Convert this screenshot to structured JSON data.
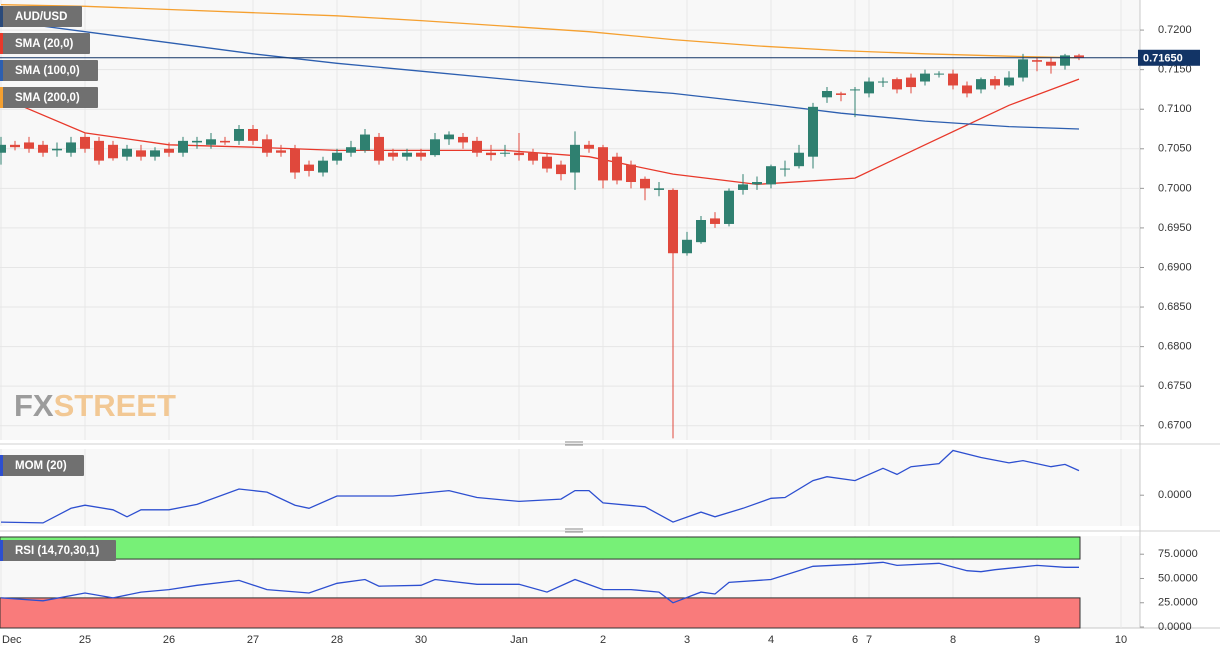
{
  "chart_data": [
    {
      "type": "candlestick",
      "name": "AUD/USD",
      "categories": [
        "Dec",
        null,
        null,
        null,
        null,
        null,
        "25",
        null,
        null,
        null,
        null,
        null,
        "26",
        null,
        null,
        null,
        null,
        null,
        "27",
        null,
        null,
        null,
        null,
        null,
        "28",
        null,
        null,
        null,
        null,
        null,
        "30",
        null,
        null,
        null,
        null,
        null,
        null,
        "Jan",
        null,
        null,
        null,
        null,
        null,
        "2",
        null,
        null,
        null,
        null,
        null,
        "3",
        null,
        null,
        null,
        null,
        null,
        "4",
        null,
        null,
        null,
        null,
        null,
        "6",
        "7",
        null,
        null,
        null,
        null,
        null,
        "8",
        null,
        null,
        null,
        null,
        null,
        "9",
        null,
        null,
        null,
        null,
        null,
        "10"
      ],
      "open": [
        0.7045,
        0.7055,
        0.7058,
        0.7055,
        0.7048,
        0.7045,
        0.7065,
        0.706,
        0.7055,
        0.704,
        0.7048,
        0.704,
        0.705,
        0.7045,
        0.7058,
        0.7055,
        0.706,
        0.706,
        0.7075,
        0.7062,
        0.7048,
        0.705,
        0.703,
        0.702,
        0.7035,
        0.7045,
        0.7048,
        0.7065,
        0.7045,
        0.704,
        0.7045,
        0.7042,
        0.7062,
        0.7065,
        0.706,
        0.7045,
        0.7045,
        0.7045,
        0.7045,
        0.704,
        0.703,
        0.702,
        0.7055,
        0.7052,
        0.704,
        0.703,
        0.7012,
        0.6998,
        0.6998,
        0.6918,
        0.6932,
        0.6962,
        0.6955,
        0.6998,
        0.7005,
        0.7005,
        0.7025,
        0.7028,
        0.704,
        0.7115,
        0.712,
        0.7125,
        0.712,
        0.7135,
        0.7138,
        0.714,
        0.7135,
        0.7145,
        0.7145,
        0.713,
        0.7125,
        0.7138,
        0.713,
        0.714,
        0.7162,
        0.716,
        0.7155,
        0.7168,
        null,
        null,
        null
      ],
      "high": [
        0.7065,
        0.706,
        0.7065,
        0.706,
        0.7058,
        0.7065,
        0.707,
        0.7065,
        0.706,
        0.7055,
        0.7055,
        0.7052,
        0.7058,
        0.7065,
        0.7065,
        0.707,
        0.7065,
        0.708,
        0.708,
        0.7068,
        0.7055,
        0.7055,
        0.7035,
        0.704,
        0.705,
        0.706,
        0.7075,
        0.707,
        0.705,
        0.705,
        0.705,
        0.707,
        0.7072,
        0.707,
        0.7065,
        0.7055,
        0.7055,
        0.707,
        0.705,
        0.7045,
        0.7035,
        0.7072,
        0.706,
        0.7055,
        0.7045,
        0.7035,
        0.7015,
        0.7008,
        0.7,
        0.6945,
        0.6965,
        0.697,
        0.7,
        0.7018,
        0.7015,
        0.703,
        0.7035,
        0.7055,
        0.7108,
        0.7128,
        0.7122,
        0.7128,
        0.714,
        0.714,
        0.714,
        0.7145,
        0.715,
        0.7148,
        0.715,
        0.7135,
        0.714,
        0.7142,
        0.7148,
        0.717,
        0.7165,
        0.7165,
        0.717,
        0.717,
        null,
        null,
        null
      ],
      "low": [
        0.703,
        0.7048,
        0.7045,
        0.704,
        0.704,
        0.704,
        0.7045,
        0.703,
        0.7035,
        0.7035,
        0.7035,
        0.7035,
        0.704,
        0.704,
        0.705,
        0.705,
        0.7055,
        0.7055,
        0.7055,
        0.704,
        0.704,
        0.7012,
        0.7015,
        0.7015,
        0.703,
        0.704,
        0.7045,
        0.703,
        0.7035,
        0.7035,
        0.7035,
        0.704,
        0.7055,
        0.705,
        0.704,
        0.7035,
        0.704,
        0.7035,
        0.703,
        0.702,
        0.701,
        0.6998,
        0.7045,
        0.7,
        0.7005,
        0.7,
        0.6985,
        0.699,
        0.6684,
        0.6915,
        0.693,
        0.695,
        0.6952,
        0.6992,
        0.6998,
        0.7,
        0.7015,
        0.7025,
        0.7025,
        0.7108,
        0.711,
        0.709,
        0.7115,
        0.7128,
        0.712,
        0.712,
        0.713,
        0.714,
        0.7125,
        0.7115,
        0.712,
        0.7125,
        0.7128,
        0.7135,
        0.7148,
        0.7145,
        0.715,
        0.7162,
        null,
        null,
        null
      ],
      "close": [
        0.7055,
        0.7052,
        0.705,
        0.7045,
        0.705,
        0.7058,
        0.705,
        0.7035,
        0.7038,
        0.705,
        0.704,
        0.7048,
        0.7045,
        0.706,
        0.706,
        0.7062,
        0.7058,
        0.7075,
        0.706,
        0.7045,
        0.7045,
        0.702,
        0.7022,
        0.7035,
        0.7045,
        0.7052,
        0.7068,
        0.7035,
        0.704,
        0.7045,
        0.704,
        0.7062,
        0.7068,
        0.7058,
        0.7045,
        0.7042,
        0.7045,
        0.7042,
        0.7035,
        0.7025,
        0.7018,
        0.7055,
        0.705,
        0.701,
        0.701,
        0.7008,
        0.7,
        0.7,
        0.6918,
        0.6935,
        0.696,
        0.6955,
        0.6997,
        0.7005,
        0.7008,
        0.7028,
        0.7025,
        0.7045,
        0.7103,
        0.7123,
        0.7118,
        0.7125,
        0.7135,
        0.7135,
        0.7125,
        0.7128,
        0.7145,
        0.7145,
        0.713,
        0.712,
        0.7138,
        0.713,
        0.714,
        0.7163,
        0.716,
        0.7155,
        0.7168,
        0.7165,
        null,
        null,
        null
      ],
      "up_color": "#2f8070",
      "down_color": "#e0483c",
      "ylim": [
        0.6682,
        0.7238
      ],
      "yticks": [
        {
          "value": 0.67,
          "label": "0.6700"
        },
        {
          "value": 0.675,
          "label": "0.6750"
        },
        {
          "value": 0.68,
          "label": "0.6800"
        },
        {
          "value": 0.685,
          "label": "0.6850"
        },
        {
          "value": 0.69,
          "label": "0.6900"
        },
        {
          "value": 0.695,
          "label": "0.6950"
        },
        {
          "value": 0.7,
          "label": "0.7000"
        },
        {
          "value": 0.705,
          "label": "0.7050"
        },
        {
          "value": 0.71,
          "label": "0.7100"
        },
        {
          "value": 0.715,
          "label": "0.7150"
        },
        {
          "value": 0.72,
          "label": "0.7200"
        }
      ],
      "grid": true,
      "price_line": {
        "value": 0.7165,
        "label": "0.71650",
        "color": "#123466"
      },
      "watermark": [
        "FX",
        "STREET"
      ],
      "series": [
        {
          "name": "SMA (20,0)",
          "color": "#e8382a",
          "x": [
            0,
            6,
            12,
            18,
            24,
            30,
            36,
            42,
            48,
            54,
            61,
            66,
            72,
            77
          ],
          "values": [
            0.7115,
            0.707,
            0.7055,
            0.7052,
            0.7048,
            0.7048,
            0.7048,
            0.704,
            0.7018,
            0.7005,
            0.7013,
            0.7055,
            0.7105,
            0.7138
          ]
        },
        {
          "name": "SMA (100,0)",
          "color": "#2d5fb0",
          "x": [
            0,
            6,
            12,
            18,
            24,
            30,
            36,
            42,
            48,
            54,
            60,
            66,
            72,
            77
          ],
          "values": [
            0.7212,
            0.7198,
            0.7184,
            0.717,
            0.7158,
            0.7148,
            0.7138,
            0.7128,
            0.712,
            0.7108,
            0.7095,
            0.7085,
            0.7078,
            0.7075
          ]
        },
        {
          "name": "SMA (200,0)",
          "color": "#f5a030",
          "x": [
            0,
            6,
            12,
            18,
            24,
            30,
            36,
            42,
            48,
            54,
            60,
            66,
            72,
            77
          ],
          "values": [
            0.7232,
            0.723,
            0.7226,
            0.7222,
            0.7218,
            0.7212,
            0.7205,
            0.7198,
            0.7188,
            0.718,
            0.7174,
            0.717,
            0.7167,
            0.7165
          ]
        }
      ]
    },
    {
      "type": "line",
      "series": [
        {
          "name": "MOM (20)",
          "color": "#2d4fd0",
          "x": [
            0,
            3,
            5,
            6,
            8,
            9,
            10,
            12,
            14,
            17,
            19,
            21,
            22,
            24,
            28,
            32,
            34,
            37,
            40,
            41,
            42,
            43,
            46,
            48,
            50,
            51,
            53,
            55,
            56,
            58,
            59,
            61,
            63,
            64,
            65,
            67,
            68,
            70,
            72,
            73,
            75,
            76,
            77
          ],
          "values": [
            -0.0035,
            -0.0036,
            -0.0017,
            -0.0013,
            -0.0019,
            -0.0028,
            -0.0019,
            -0.0019,
            -0.0012,
            0.0008,
            0.0004,
            -0.0013,
            -0.0017,
            -0.0001,
            -0.0001,
            0.0006,
            -0.0003,
            -0.0008,
            -0.0005,
            0.0006,
            0.0006,
            -0.001,
            -0.0015,
            -0.0035,
            -0.0022,
            -0.0028,
            -0.0017,
            -0.0004,
            -0.0003,
            0.0019,
            0.0024,
            0.0019,
            0.0035,
            0.0027,
            0.0037,
            0.0041,
            0.0058,
            0.0049,
            0.0042,
            0.0045,
            0.0037,
            0.004,
            0.0032
          ]
        }
      ],
      "ylim": [
        -0.004,
        0.006
      ],
      "yticks": [
        {
          "value": 0,
          "label": "0.0000"
        }
      ]
    },
    {
      "type": "line",
      "series": [
        {
          "name": "RSI (14,70,30,1)",
          "color": "#2d4fd0",
          "x": [
            0,
            3,
            6,
            8,
            10,
            12,
            14,
            17,
            19,
            22,
            24,
            26,
            27,
            30,
            31,
            34,
            37,
            39,
            41,
            43,
            45,
            47,
            48,
            50,
            51,
            52,
            55,
            58,
            61,
            63,
            64,
            67,
            69,
            70,
            71,
            74,
            76,
            77
          ],
          "values": [
            30,
            27,
            35,
            30,
            36,
            38.5,
            43,
            48,
            38.5,
            35,
            45,
            49,
            42,
            43,
            49,
            44,
            44,
            36,
            49,
            38.5,
            38.5,
            36,
            25,
            36,
            34,
            46,
            49,
            62.5,
            64.6,
            66.7,
            63.5,
            65.6,
            58,
            57,
            59,
            63.5,
            61.5,
            61.5
          ]
        }
      ],
      "ylim": [
        -1,
        93.75
      ],
      "yticks": [
        {
          "value": 0,
          "label": "0.0000"
        },
        {
          "value": 25,
          "label": "25.0000"
        },
        {
          "value": 50,
          "label": "50.0000"
        },
        {
          "value": 75,
          "label": "75.0000"
        }
      ],
      "bands": {
        "upper": 70,
        "lower": 30,
        "upper_color": "#77f077",
        "lower_color": "#f97b7b"
      }
    }
  ]
}
